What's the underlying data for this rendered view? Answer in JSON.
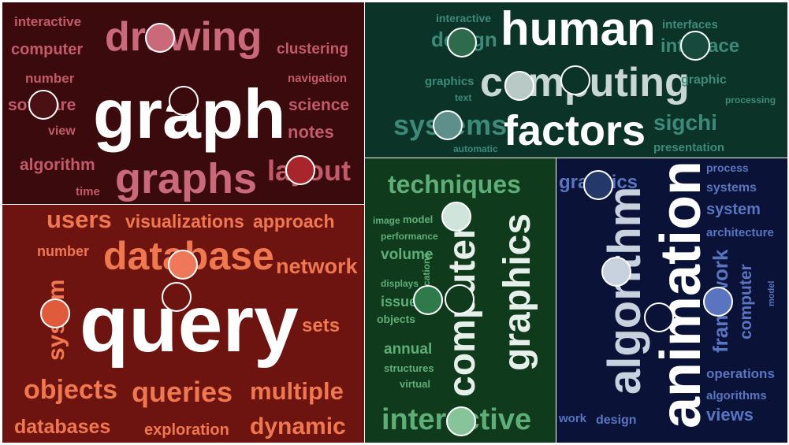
{
  "panels": [
    {
      "id": "graph-drawing",
      "bg": "#3a0a0c",
      "color": "#c25a6a",
      "words": [
        {
          "t": "interactive"
        },
        {
          "t": "drawing"
        },
        {
          "t": "clustering"
        },
        {
          "t": "computer"
        },
        {
          "t": "number"
        },
        {
          "t": "navigation"
        },
        {
          "t": "graph"
        },
        {
          "t": "software"
        },
        {
          "t": "science"
        },
        {
          "t": "view"
        },
        {
          "t": "notes"
        },
        {
          "t": "algorithm"
        },
        {
          "t": "layout"
        },
        {
          "t": "time"
        },
        {
          "t": "graphs"
        }
      ],
      "dots": [
        {
          "color": "#c9697a"
        },
        {
          "color": "#3a0a0c"
        },
        {
          "color": "#4a1014"
        },
        {
          "color": "#a8262b"
        }
      ]
    },
    {
      "id": "human-computing",
      "bg": "#0c3327",
      "color": "#3e8a7a",
      "words": [
        {
          "t": "interactive"
        },
        {
          "t": "human"
        },
        {
          "t": "interfaces"
        },
        {
          "t": "design"
        },
        {
          "t": "interface"
        },
        {
          "t": "computing"
        },
        {
          "t": "graphics"
        },
        {
          "t": "graphic"
        },
        {
          "t": "text"
        },
        {
          "t": "processing"
        },
        {
          "t": "systems"
        },
        {
          "t": "factors"
        },
        {
          "t": "sigchi"
        },
        {
          "t": "automatic"
        },
        {
          "t": "presentation"
        }
      ],
      "dots": [
        {
          "color": "#2e6a4c"
        },
        {
          "color": "#174a3c"
        },
        {
          "color": "#b9c9c6"
        },
        {
          "color": "#0c3327"
        },
        {
          "color": "#5e8f8b"
        }
      ]
    },
    {
      "id": "database-query",
      "bg": "#6e1410",
      "color": "#f07850",
      "words": [
        {
          "t": "users"
        },
        {
          "t": "visualizations"
        },
        {
          "t": "approach"
        },
        {
          "t": "number"
        },
        {
          "t": "database"
        },
        {
          "t": "network"
        },
        {
          "t": "system"
        },
        {
          "t": "query"
        },
        {
          "t": "sets"
        },
        {
          "t": "objects"
        },
        {
          "t": "queries"
        },
        {
          "t": "multiple"
        },
        {
          "t": "databases"
        },
        {
          "t": "exploration"
        },
        {
          "t": "dynamic"
        }
      ],
      "dots": [
        {
          "color": "#f0785a"
        },
        {
          "color": "#6e1410"
        },
        {
          "color": "#e05a3c"
        }
      ]
    },
    {
      "id": "computer-graphics",
      "bg": "#0f3a1c",
      "color": "#5fae78",
      "words": [
        {
          "t": "techniques"
        },
        {
          "t": "image"
        },
        {
          "t": "model"
        },
        {
          "t": "performance"
        },
        {
          "t": "volume"
        },
        {
          "t": "displays"
        },
        {
          "t": "applications"
        },
        {
          "t": "issues"
        },
        {
          "t": "objects"
        },
        {
          "t": "computer"
        },
        {
          "t": "graphics"
        },
        {
          "t": "annual"
        },
        {
          "t": "structures"
        },
        {
          "t": "virtual"
        },
        {
          "t": "interactive"
        }
      ],
      "dots": [
        {
          "color": "#cfe5dc"
        },
        {
          "color": "#2e7a4a"
        },
        {
          "color": "#0f3a1c"
        },
        {
          "color": "#88c49a"
        }
      ]
    },
    {
      "id": "animation",
      "bg": "#0a1238",
      "color": "#5a74c0",
      "words": [
        {
          "t": "process"
        },
        {
          "t": "graphics"
        },
        {
          "t": "systems"
        },
        {
          "t": "system"
        },
        {
          "t": "architecture"
        },
        {
          "t": "algorithm"
        },
        {
          "t": "animation"
        },
        {
          "t": "framework"
        },
        {
          "t": "computer"
        },
        {
          "t": "model"
        },
        {
          "t": "operations"
        },
        {
          "t": "algorithms"
        },
        {
          "t": "work"
        },
        {
          "t": "design"
        },
        {
          "t": "views"
        }
      ],
      "dots": [
        {
          "color": "#24386a"
        },
        {
          "color": "#c8d2df"
        },
        {
          "color": "#0a1238"
        },
        {
          "color": "#5a74c0"
        }
      ]
    }
  ]
}
